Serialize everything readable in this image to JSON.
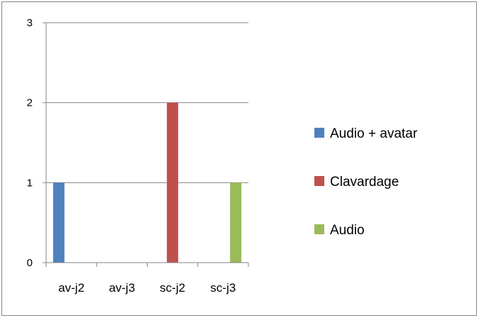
{
  "chart_data": {
    "type": "bar",
    "categories": [
      "av-j2",
      "av-j3",
      "sc-j2",
      "sc-j3"
    ],
    "series": [
      {
        "name": "Audio + avatar",
        "color": "#4F81BD",
        "values": [
          1,
          0,
          0,
          0
        ]
      },
      {
        "name": "Clavardage",
        "color": "#C0504D",
        "values": [
          0,
          0,
          2,
          0
        ]
      },
      {
        "name": "Audio",
        "color": "#9BBB59",
        "values": [
          0,
          0,
          0,
          1
        ]
      }
    ],
    "ylim": [
      0,
      3
    ],
    "yticks": [
      0,
      1,
      2,
      3
    ],
    "title": "",
    "xlabel": "",
    "ylabel": "",
    "grid": true,
    "legend_position": "right",
    "colors": {
      "gridline": "#868686",
      "axis": "#868686"
    }
  }
}
